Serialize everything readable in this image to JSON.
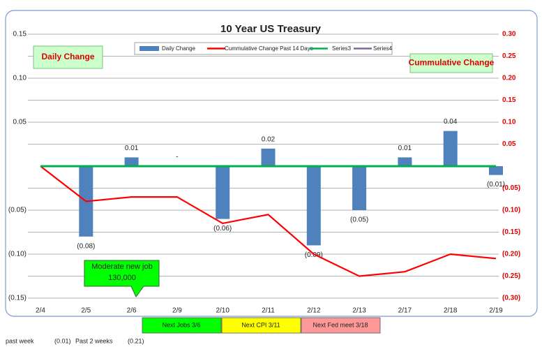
{
  "chart_data": {
    "type": "bar",
    "title": "10 Year US Treasury",
    "categories": [
      "2/4",
      "2/5",
      "2/6",
      "2/9",
      "2/10",
      "2/11",
      "2/12",
      "2/13",
      "2/17",
      "2/18",
      "2/19"
    ],
    "series": [
      {
        "name": "Daily Change",
        "type": "bar",
        "color": "#4f81bd",
        "values": [
          null,
          -0.08,
          0.01,
          0,
          -0.06,
          0.02,
          -0.09,
          -0.05,
          0.01,
          0.04,
          -0.01
        ],
        "value_labels": [
          null,
          "(0.08)",
          "0.01",
          "-",
          "(0.06)",
          "0.02",
          "(0.09)",
          "(0.05)",
          "0.01",
          "0.04",
          "(0.01)"
        ]
      },
      {
        "name": "Cummulative Change Past 14 Days",
        "type": "line",
        "axis": "y2",
        "color": "#ff0000",
        "values": [
          0,
          -0.08,
          -0.07,
          -0.07,
          -0.13,
          -0.11,
          -0.2,
          -0.25,
          -0.24,
          -0.2,
          -0.21
        ]
      },
      {
        "name": "Series3",
        "type": "line",
        "color": "#00b050",
        "values": [
          0,
          0,
          0,
          0,
          0,
          0,
          0,
          0,
          0,
          0,
          0
        ]
      },
      {
        "name": "Series4",
        "type": "line",
        "color": "#8064a2",
        "values": [
          null,
          null,
          null,
          null,
          null,
          null,
          null,
          null,
          null,
          null,
          null
        ]
      }
    ],
    "ylim": [
      -0.15,
      0.15
    ],
    "yticks": [
      0.15,
      {
        "value": 0.1,
        "label": "0.10"
      },
      0.05,
      {
        "value": -0.05,
        "label": "(0.05)"
      },
      {
        "value": -0.1,
        "label": "(0.10)"
      },
      {
        "value": -0.15,
        "label": "(0.15)"
      }
    ],
    "y2lim": [
      -0.3,
      0.3
    ],
    "y2ticks": [
      {
        "value": 0.3,
        "label": "0.30"
      },
      0.25,
      {
        "value": 0.2,
        "label": "0.20"
      },
      0.15,
      {
        "value": 0.1,
        "label": "0.10"
      },
      0.05,
      {
        "value": -0.05,
        "label": "(0.05)"
      },
      {
        "value": -0.1,
        "label": "(0.10)"
      },
      {
        "value": -0.15,
        "label": "(0.15)"
      },
      {
        "value": -0.2,
        "label": "(0.20)"
      },
      {
        "value": -0.25,
        "label": "(0.25)"
      },
      {
        "value": -0.3,
        "label": "(0.30)"
      }
    ],
    "grid": true,
    "annotations": [
      "Daily Change",
      "Cummulative Change"
    ],
    "callout": [
      "Moderate new job",
      "130,000"
    ],
    "notes": [
      "Next Jobs 3/6",
      "Next CPI 3/11",
      "Next Fed meet 3/18"
    ]
  },
  "footer": [
    "past week",
    "(0.01)",
    "Past 2 weeks",
    "(0.21)"
  ]
}
